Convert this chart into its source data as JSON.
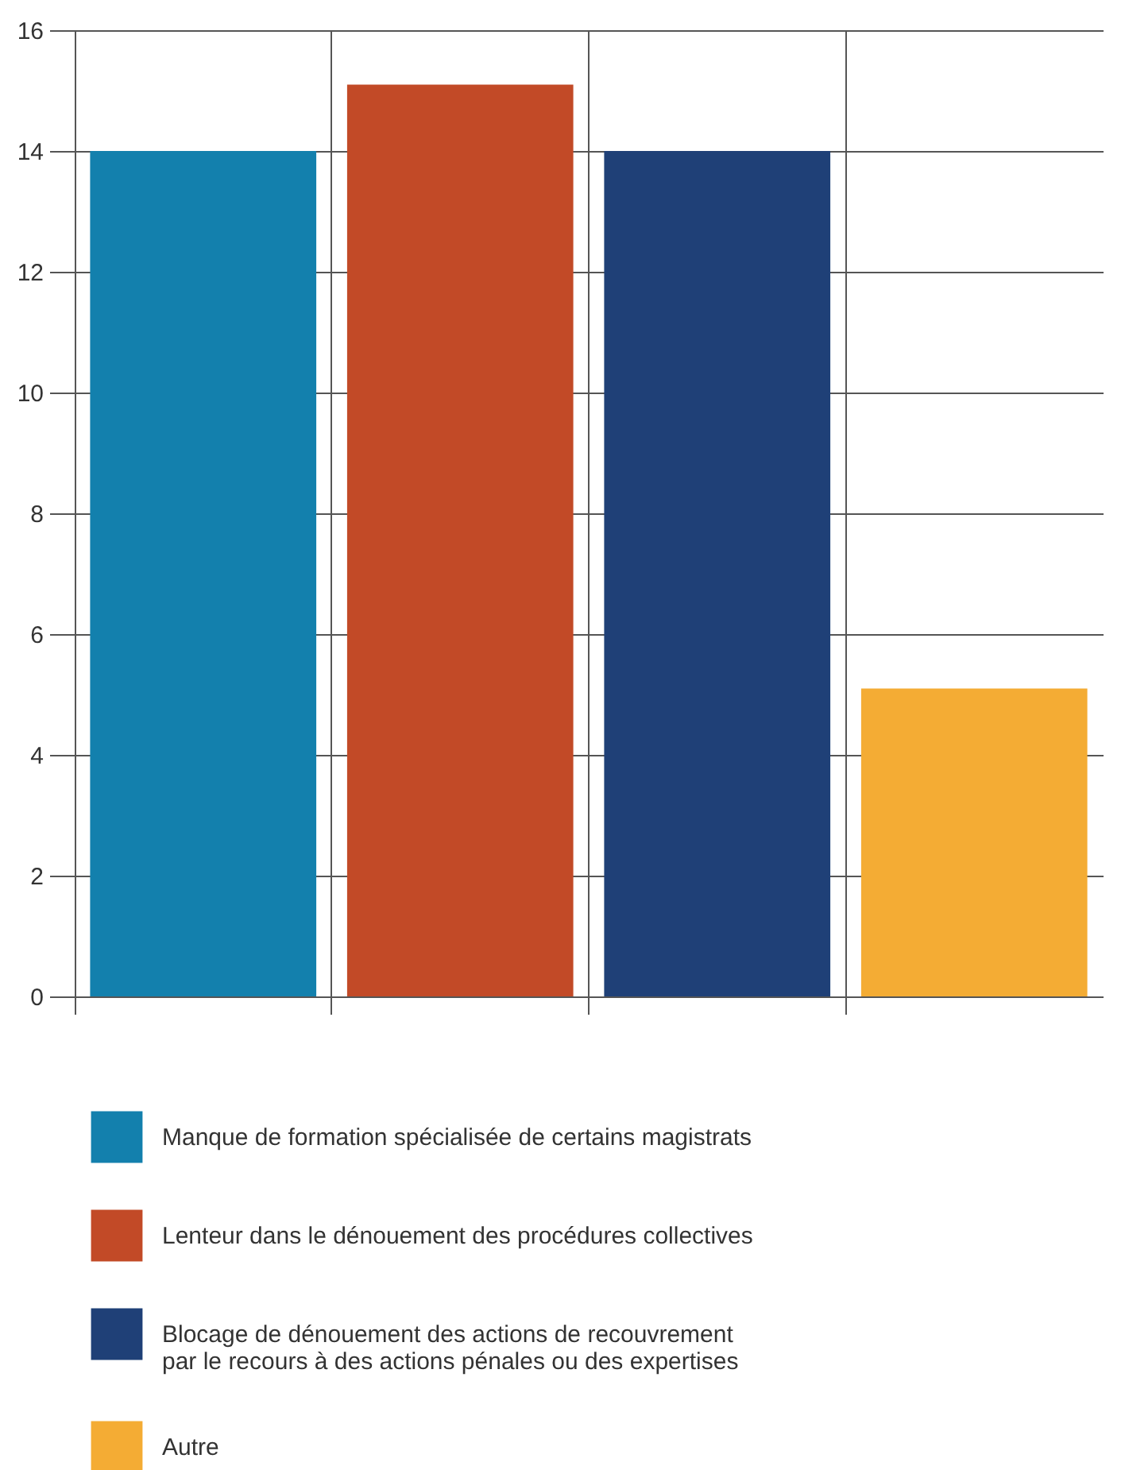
{
  "chart_data": {
    "type": "bar",
    "categories": [
      null,
      null,
      null,
      null
    ],
    "series": [
      {
        "name": "Manque de formation spécialisée de certains magistrats",
        "color": "#1380ad",
        "values": [
          14,
          null,
          null,
          null
        ]
      },
      {
        "name": "Lenteur dans le dénouement des procédures collectives",
        "color": "#c24a27",
        "values": [
          null,
          15.1,
          null,
          null
        ]
      },
      {
        "name": "Blocage de dénouement des actions de recouvrement\npar le recours à des actions pénales ou des expertises",
        "color": "#1f4077",
        "values": [
          null,
          null,
          14,
          null
        ]
      },
      {
        "name": "Autre",
        "color": "#f4ac34",
        "values": [
          null,
          null,
          null,
          5.1
        ]
      }
    ],
    "ylim": [
      0,
      16
    ],
    "yticks": [
      0,
      2,
      4,
      6,
      8,
      10,
      12,
      14,
      16
    ],
    "grid": true,
    "legend": "bottom",
    "tick_labels": "y"
  }
}
